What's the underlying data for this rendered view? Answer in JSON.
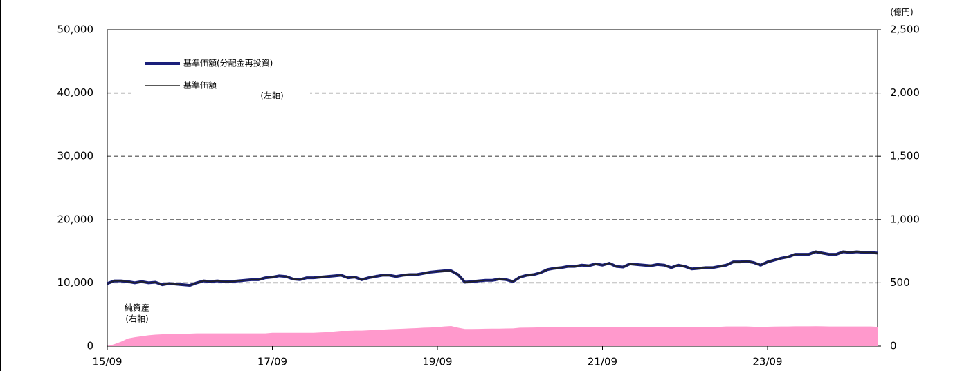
{
  "chart_data": {
    "type": "line",
    "y2_label": "(億円)",
    "annotations": [
      "(左軸)",
      "(右軸)"
    ],
    "categories": [
      "15/09",
      null,
      null,
      null,
      null,
      null,
      null,
      null,
      null,
      null,
      null,
      null,
      null,
      null,
      null,
      null,
      null,
      null,
      null,
      null,
      null,
      null,
      null,
      null,
      "17/09",
      null,
      null,
      null,
      null,
      null,
      null,
      null,
      null,
      null,
      null,
      null,
      null,
      null,
      null,
      null,
      null,
      null,
      null,
      null,
      null,
      null,
      null,
      null,
      "19/09",
      null,
      null,
      null,
      null,
      null,
      null,
      null,
      null,
      null,
      null,
      null,
      null,
      null,
      null,
      null,
      null,
      null,
      null,
      null,
      null,
      null,
      null,
      null,
      "21/09",
      null,
      null,
      null,
      null,
      null,
      null,
      null,
      null,
      null,
      null,
      null,
      null,
      null,
      null,
      null,
      null,
      null,
      null,
      null,
      null,
      null,
      null,
      null,
      "23/09",
      null,
      null,
      null,
      null,
      null,
      null,
      null,
      null,
      null,
      null,
      null,
      null,
      null,
      null,
      null,
      null
    ],
    "series": [
      {
        "name": "基準価額(分配金再投資)",
        "color": "#1a1f7a",
        "values": [
          9900,
          10300,
          10300,
          10200,
          10000,
          10200,
          10000,
          10100,
          9700,
          9900,
          9800,
          9700,
          9600,
          10000,
          10300,
          10200,
          10300,
          10200,
          10200,
          10300,
          10400,
          10500,
          10500,
          10800,
          10900,
          11100,
          11000,
          10600,
          10500,
          10800,
          10800,
          10900,
          11000,
          11100,
          11200,
          10800,
          10900,
          10500,
          10800,
          11000,
          11200,
          11200,
          11000,
          11200,
          11300,
          11300,
          11500,
          11700,
          11800,
          11900,
          11900,
          11300,
          10100,
          10200,
          10300,
          10400,
          10400,
          10600,
          10500,
          10200,
          10900,
          11200,
          11300,
          11600,
          12100,
          12300,
          12400,
          12600,
          12600,
          12800,
          12700,
          13000,
          12800,
          13100,
          12600,
          12500,
          13000,
          12900,
          12800,
          12700,
          12900,
          12800,
          12400,
          12800,
          12600,
          12200,
          12300,
          12400,
          12400,
          12600,
          12800,
          13300,
          13300,
          13400,
          13200,
          12800,
          13300,
          13600,
          13900,
          14100,
          14500,
          14500,
          14500,
          14900,
          14700,
          14500,
          14500,
          14900,
          14800,
          14900,
          14800,
          14800,
          14700
        ]
      },
      {
        "name": "基準価額",
        "color": "#222222",
        "values": [
          9900,
          10300,
          10300,
          10200,
          10000,
          10200,
          10000,
          10100,
          9700,
          9900,
          9800,
          9700,
          9600,
          10000,
          10300,
          10200,
          10300,
          10200,
          10200,
          10300,
          10400,
          10500,
          10500,
          10800,
          10900,
          11100,
          11000,
          10600,
          10500,
          10800,
          10800,
          10900,
          11000,
          11100,
          11200,
          10800,
          10900,
          10500,
          10800,
          11000,
          11200,
          11200,
          11000,
          11200,
          11300,
          11300,
          11500,
          11700,
          11800,
          11900,
          11900,
          11300,
          10100,
          10200,
          10300,
          10400,
          10400,
          10600,
          10500,
          10200,
          10900,
          11200,
          11300,
          11600,
          12100,
          12300,
          12400,
          12600,
          12600,
          12800,
          12700,
          13000,
          12800,
          13100,
          12600,
          12500,
          13000,
          12900,
          12800,
          12700,
          12900,
          12800,
          12400,
          12800,
          12600,
          12200,
          12300,
          12400,
          12400,
          12600,
          12800,
          13300,
          13300,
          13400,
          13200,
          12800,
          13300,
          13600,
          13900,
          14100,
          14500,
          14500,
          14500,
          14900,
          14700,
          14500,
          14500,
          14900,
          14800,
          14900,
          14800,
          14800,
          14700
        ]
      },
      {
        "name": "純資産",
        "color": "#ff99cc",
        "axis": "y2",
        "values": [
          0,
          15,
          35,
          60,
          70,
          78,
          85,
          90,
          93,
          95,
          97,
          98,
          98,
          100,
          100,
          100,
          100,
          100,
          100,
          100,
          100,
          100,
          100,
          100,
          105,
          105,
          105,
          105,
          105,
          105,
          105,
          108,
          110,
          115,
          120,
          120,
          122,
          122,
          125,
          128,
          130,
          133,
          135,
          137,
          140,
          142,
          145,
          147,
          150,
          155,
          158,
          145,
          135,
          135,
          136,
          137,
          138,
          138,
          139,
          140,
          145,
          146,
          147,
          148,
          148,
          150,
          150,
          150,
          150,
          150,
          150,
          150,
          152,
          150,
          148,
          150,
          152,
          150,
          150,
          150,
          150,
          150,
          150,
          150,
          150,
          150,
          150,
          150,
          150,
          152,
          155,
          155,
          155,
          155,
          153,
          152,
          153,
          154,
          155,
          155,
          156,
          156,
          156,
          157,
          156,
          155,
          155,
          155,
          155,
          155,
          155,
          155,
          152
        ]
      }
    ],
    "ylim": [
      0,
      50000
    ],
    "yticks": [
      0,
      {
        "value": 10000,
        "label": "10,000"
      },
      {
        "value": 20000,
        "label": "20,000"
      },
      {
        "value": 30000,
        "label": "30,000"
      },
      {
        "value": 40000,
        "label": "40,000"
      },
      {
        "value": 50000,
        "label": "50,000"
      }
    ],
    "y2lim": [
      0,
      2500
    ],
    "y2ticks": [
      0,
      500,
      {
        "value": 1000,
        "label": "1,000"
      },
      {
        "value": 1500,
        "label": "1,500"
      },
      {
        "value": 2000,
        "label": "2,000"
      },
      {
        "value": 2500,
        "label": "2,500"
      }
    ],
    "grid": true
  }
}
